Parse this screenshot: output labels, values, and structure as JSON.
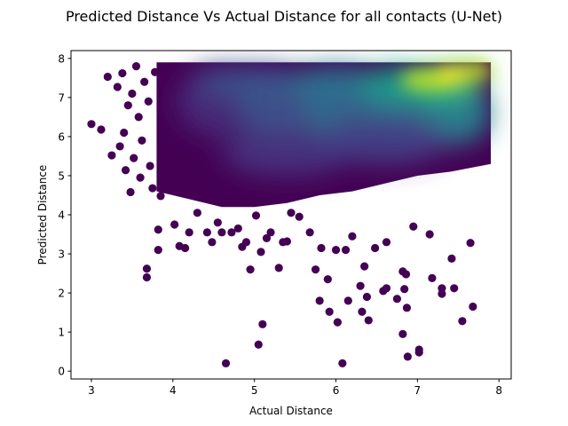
{
  "chart_data": {
    "type": "scatter",
    "title": "Predicted Distance Vs Actual Distance for all contacts (U-Net)",
    "xlabel": "Actual Distance",
    "ylabel": "Predicted Distance",
    "xlim": [
      2.75,
      8.15
    ],
    "ylim": [
      -0.2,
      8.2
    ],
    "xticks": [
      "3",
      "4",
      "5",
      "6",
      "7",
      "8"
    ],
    "yticks": [
      "0",
      "1",
      "2",
      "3",
      "4",
      "5",
      "6",
      "7",
      "8"
    ],
    "colormap": "viridis",
    "color_encodes": "point density",
    "grid": false,
    "dense_region": {
      "x_range": [
        3.8,
        7.9
      ],
      "y_top": 7.9,
      "lower_edge": [
        {
          "x": 3.8,
          "y": 4.6
        },
        {
          "x": 4.2,
          "y": 4.4
        },
        {
          "x": 4.6,
          "y": 4.2
        },
        {
          "x": 5.0,
          "y": 4.2
        },
        {
          "x": 5.4,
          "y": 4.3
        },
        {
          "x": 5.8,
          "y": 4.5
        },
        {
          "x": 6.2,
          "y": 4.6
        },
        {
          "x": 6.6,
          "y": 4.8
        },
        {
          "x": 7.0,
          "y": 5.0
        },
        {
          "x": 7.4,
          "y": 5.1
        },
        {
          "x": 7.9,
          "y": 5.3
        }
      ],
      "peak": {
        "x": 7.35,
        "y": 7.55
      }
    },
    "points": [
      {
        "x": 3.0,
        "y": 6.32
      },
      {
        "x": 3.12,
        "y": 6.18
      },
      {
        "x": 3.2,
        "y": 7.53
      },
      {
        "x": 3.25,
        "y": 5.52
      },
      {
        "x": 3.32,
        "y": 7.27
      },
      {
        "x": 3.35,
        "y": 5.75
      },
      {
        "x": 3.38,
        "y": 7.62
      },
      {
        "x": 3.4,
        "y": 6.1
      },
      {
        "x": 3.42,
        "y": 5.14
      },
      {
        "x": 3.45,
        "y": 6.8
      },
      {
        "x": 3.48,
        "y": 4.58
      },
      {
        "x": 3.5,
        "y": 7.1
      },
      {
        "x": 3.52,
        "y": 5.45
      },
      {
        "x": 3.55,
        "y": 7.8
      },
      {
        "x": 3.58,
        "y": 6.5
      },
      {
        "x": 3.6,
        "y": 4.95
      },
      {
        "x": 3.62,
        "y": 5.9
      },
      {
        "x": 3.65,
        "y": 7.4
      },
      {
        "x": 3.68,
        "y": 2.62
      },
      {
        "x": 3.68,
        "y": 2.4
      },
      {
        "x": 3.7,
        "y": 6.9
      },
      {
        "x": 3.72,
        "y": 5.25
      },
      {
        "x": 3.75,
        "y": 4.68
      },
      {
        "x": 3.78,
        "y": 7.65
      },
      {
        "x": 3.82,
        "y": 3.62
      },
      {
        "x": 3.82,
        "y": 3.1
      },
      {
        "x": 3.85,
        "y": 4.48
      },
      {
        "x": 4.02,
        "y": 3.75
      },
      {
        "x": 4.08,
        "y": 3.2
      },
      {
        "x": 4.15,
        "y": 3.15
      },
      {
        "x": 4.2,
        "y": 3.55
      },
      {
        "x": 4.3,
        "y": 4.05
      },
      {
        "x": 4.42,
        "y": 3.55
      },
      {
        "x": 4.48,
        "y": 3.3
      },
      {
        "x": 4.55,
        "y": 3.8
      },
      {
        "x": 4.6,
        "y": 3.55
      },
      {
        "x": 4.65,
        "y": 0.2
      },
      {
        "x": 4.72,
        "y": 3.55
      },
      {
        "x": 4.8,
        "y": 3.65
      },
      {
        "x": 4.85,
        "y": 3.18
      },
      {
        "x": 4.9,
        "y": 3.3
      },
      {
        "x": 4.95,
        "y": 2.6
      },
      {
        "x": 5.02,
        "y": 3.98
      },
      {
        "x": 5.05,
        "y": 0.68
      },
      {
        "x": 5.08,
        "y": 3.05
      },
      {
        "x": 5.1,
        "y": 1.2
      },
      {
        "x": 5.15,
        "y": 3.4
      },
      {
        "x": 5.2,
        "y": 3.55
      },
      {
        "x": 5.3,
        "y": 2.64
      },
      {
        "x": 5.35,
        "y": 3.3
      },
      {
        "x": 5.4,
        "y": 3.32
      },
      {
        "x": 5.45,
        "y": 4.05
      },
      {
        "x": 5.55,
        "y": 3.95
      },
      {
        "x": 5.68,
        "y": 3.55
      },
      {
        "x": 5.75,
        "y": 2.6
      },
      {
        "x": 5.8,
        "y": 1.8
      },
      {
        "x": 5.82,
        "y": 3.15
      },
      {
        "x": 5.9,
        "y": 2.35
      },
      {
        "x": 5.92,
        "y": 1.52
      },
      {
        "x": 6.0,
        "y": 3.1
      },
      {
        "x": 6.02,
        "y": 1.25
      },
      {
        "x": 6.08,
        "y": 0.2
      },
      {
        "x": 6.12,
        "y": 3.1
      },
      {
        "x": 6.15,
        "y": 1.8
      },
      {
        "x": 6.2,
        "y": 3.45
      },
      {
        "x": 6.3,
        "y": 2.18
      },
      {
        "x": 6.32,
        "y": 1.52
      },
      {
        "x": 6.35,
        "y": 2.68
      },
      {
        "x": 6.38,
        "y": 1.9
      },
      {
        "x": 6.4,
        "y": 1.3
      },
      {
        "x": 6.48,
        "y": 3.15
      },
      {
        "x": 6.58,
        "y": 2.05
      },
      {
        "x": 6.62,
        "y": 3.3
      },
      {
        "x": 6.62,
        "y": 2.12
      },
      {
        "x": 6.75,
        "y": 1.85
      },
      {
        "x": 6.82,
        "y": 2.55
      },
      {
        "x": 6.82,
        "y": 0.95
      },
      {
        "x": 6.84,
        "y": 2.1
      },
      {
        "x": 6.86,
        "y": 2.48
      },
      {
        "x": 6.87,
        "y": 1.62
      },
      {
        "x": 6.88,
        "y": 0.37
      },
      {
        "x": 6.95,
        "y": 3.7
      },
      {
        "x": 7.02,
        "y": 0.55
      },
      {
        "x": 7.02,
        "y": 0.48
      },
      {
        "x": 7.15,
        "y": 3.5
      },
      {
        "x": 7.18,
        "y": 2.38
      },
      {
        "x": 7.3,
        "y": 2.12
      },
      {
        "x": 7.3,
        "y": 1.98
      },
      {
        "x": 7.42,
        "y": 2.88
      },
      {
        "x": 7.45,
        "y": 2.12
      },
      {
        "x": 7.55,
        "y": 1.28
      },
      {
        "x": 7.65,
        "y": 3.28
      },
      {
        "x": 7.68,
        "y": 1.65
      }
    ]
  }
}
